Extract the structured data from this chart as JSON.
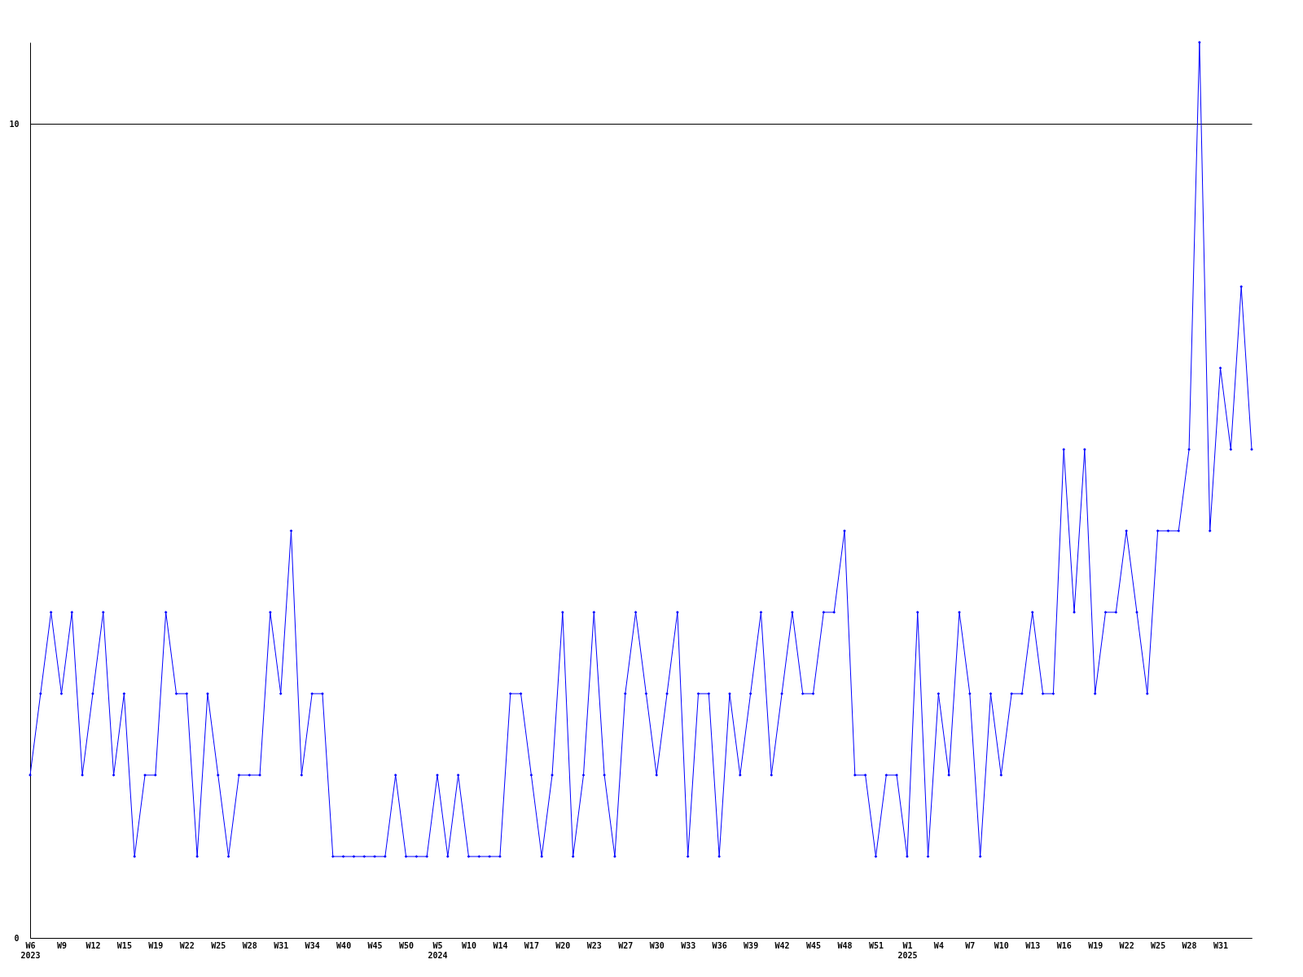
{
  "chart_data": {
    "type": "line",
    "categories": [
      "W6\n2023",
      null,
      null,
      "W9",
      null,
      null,
      "W12",
      null,
      null,
      "W15",
      null,
      null,
      "W19",
      null,
      null,
      "W22",
      null,
      null,
      "W25",
      null,
      null,
      "W28",
      null,
      null,
      "W31",
      null,
      null,
      "W34",
      null,
      null,
      "W40",
      null,
      null,
      "W45",
      null,
      null,
      "W50",
      null,
      null,
      "W5\n2024",
      null,
      null,
      "W10",
      null,
      null,
      "W14",
      null,
      null,
      "W17",
      null,
      null,
      "W20",
      null,
      null,
      "W23",
      null,
      null,
      "W27",
      null,
      null,
      "W30",
      null,
      null,
      "W33",
      null,
      null,
      "W36",
      null,
      null,
      "W39",
      null,
      null,
      "W42",
      null,
      null,
      "W45",
      null,
      null,
      "W48",
      null,
      null,
      "W51",
      null,
      null,
      "W1\n2025",
      null,
      null,
      "W4",
      null,
      null,
      "W7",
      null,
      null,
      "W10",
      null,
      null,
      "W13",
      null,
      null,
      "W16",
      null,
      null,
      "W19",
      null,
      null,
      "W22",
      null,
      null,
      "W25",
      null,
      null,
      "W28",
      null,
      null,
      "W31",
      null,
      null,
      null
    ],
    "series": [
      {
        "color": "#0000ff",
        "values": [
          2,
          3,
          4,
          3,
          4,
          2,
          3,
          4,
          2,
          3,
          1,
          2,
          2,
          4,
          3,
          3,
          1,
          3,
          2,
          1,
          2,
          2,
          2,
          4,
          3,
          5,
          2,
          3,
          3,
          1,
          1,
          1,
          1,
          1,
          1,
          2,
          1,
          1,
          1,
          2,
          1,
          2,
          1,
          1,
          1,
          1,
          3,
          3,
          2,
          1,
          2,
          4,
          1,
          2,
          4,
          2,
          1,
          3,
          4,
          3,
          2,
          3,
          4,
          1,
          3,
          3,
          1,
          3,
          2,
          3,
          4,
          2,
          3,
          4,
          3,
          3,
          4,
          4,
          5,
          2,
          2,
          1,
          2,
          2,
          1,
          4,
          1,
          3,
          2,
          4,
          3,
          1,
          3,
          2,
          3,
          3,
          4,
          3,
          3,
          6,
          4,
          6,
          3,
          4,
          4,
          5,
          4,
          3,
          5,
          5,
          5,
          6,
          11,
          5,
          7,
          6,
          8,
          6
        ]
      }
    ],
    "ylim": [
      0,
      11
    ],
    "yticks": [
      0,
      10
    ],
    "grid": "y",
    "marker": "diamond",
    "line_style": "solid"
  }
}
